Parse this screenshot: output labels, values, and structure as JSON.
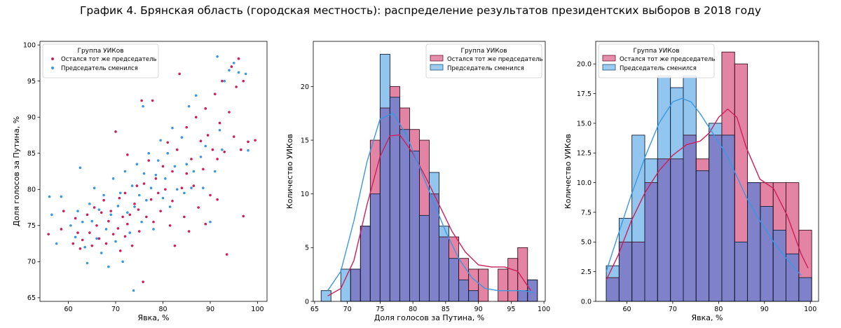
{
  "suptitle": "График 4. Брянская область (городская местность): распределение результатов президентских выборов в 2018 году",
  "colors": {
    "same": "#cc1f5a",
    "changed": "#3b98e0",
    "overlap": "#7f82c9"
  },
  "legend": {
    "title": "Группа УИКов",
    "same": "Остался тот же председатель",
    "changed": "Председатель сменился"
  },
  "chart_data": [
    {
      "type": "scatter",
      "xlabel": "Явка, %",
      "ylabel": "Доля голосов за Путина, %",
      "xlim": [
        54,
        102
      ],
      "ylim": [
        64.5,
        100.5
      ],
      "xticks": [
        60,
        70,
        80,
        90,
        100
      ],
      "yticks": [
        65,
        70,
        75,
        80,
        85,
        90,
        95,
        100
      ],
      "legend_position": "top-left",
      "note": "approximate positions of individual polling stations",
      "series": [
        {
          "name": "Остался тот же председатель",
          "points": [
            [
              55.8,
              73.8
            ],
            [
              58.5,
              74.5
            ],
            [
              59,
              77
            ],
            [
              61,
              72.5
            ],
            [
              61.5,
              76
            ],
            [
              62,
              74
            ],
            [
              62.5,
              71.8
            ],
            [
              63,
              73
            ],
            [
              64,
              76.5
            ],
            [
              64.5,
              74
            ],
            [
              65,
              72.2
            ],
            [
              65.5,
              77.5
            ],
            [
              66,
              75
            ],
            [
              66.5,
              73.2
            ],
            [
              67,
              76.8
            ],
            [
              67.5,
              78.5
            ],
            [
              68,
              72.5
            ],
            [
              68.5,
              75.6
            ],
            [
              69,
              77
            ],
            [
              69.5,
              73.8
            ],
            [
              70,
              88
            ],
            [
              70.5,
              74.6
            ],
            [
              70.8,
              78.8
            ],
            [
              71,
              71.5
            ],
            [
              71.5,
              76.2
            ],
            [
              72,
              79.5
            ],
            [
              72,
              73.5
            ],
            [
              72.5,
              84.8
            ],
            [
              72.5,
              75.2
            ],
            [
              73,
              76.5
            ],
            [
              73.5,
              72.2
            ],
            [
              74,
              78
            ],
            [
              74.5,
              80.5
            ],
            [
              74.8,
              77.2
            ],
            [
              75,
              74.2
            ],
            [
              75.5,
              92.3
            ],
            [
              75.8,
              67.2
            ],
            [
              76,
              80.8
            ],
            [
              76.5,
              76.2
            ],
            [
              77,
              84
            ],
            [
              77.5,
              78.6
            ],
            [
              77.8,
              92.3
            ],
            [
              78,
              75.5
            ],
            [
              78.5,
              81.5
            ],
            [
              79,
              79.5
            ],
            [
              79.5,
              77
            ],
            [
              80,
              83.2
            ],
            [
              80.5,
              80
            ],
            [
              81,
              86.5
            ],
            [
              81.5,
              75
            ],
            [
              82,
              82.5
            ],
            [
              82,
              78.4
            ],
            [
              82.5,
              72.2
            ],
            [
              83,
              85.5
            ],
            [
              83.5,
              96
            ],
            [
              84,
              80.2
            ],
            [
              84.5,
              76.2
            ],
            [
              85,
              88.6
            ],
            [
              85,
              82.2
            ],
            [
              85.5,
              74.2
            ],
            [
              86,
              84.2
            ],
            [
              86.5,
              80.5
            ],
            [
              87,
              90
            ],
            [
              87.5,
              77.5
            ],
            [
              88,
              86.7
            ],
            [
              88.5,
              82.8
            ],
            [
              89,
              91.2
            ],
            [
              89,
              75.2
            ],
            [
              89.5,
              87.5
            ],
            [
              90,
              79.2
            ],
            [
              90.5,
              85.5
            ],
            [
              91,
              93.2
            ],
            [
              91.5,
              84.2
            ],
            [
              91.5,
              78.6
            ],
            [
              92,
              89.2
            ],
            [
              92.5,
              95
            ],
            [
              93,
              85.2
            ],
            [
              93.5,
              71
            ],
            [
              94,
              90.7
            ],
            [
              94.5,
              97
            ],
            [
              95,
              87.3
            ],
            [
              95.5,
              94.2
            ],
            [
              96,
              98.1
            ],
            [
              96.5,
              85.5
            ],
            [
              97,
              95
            ],
            [
              97,
              76.3
            ],
            [
              98,
              86.6
            ],
            [
              99.5,
              86.8
            ]
          ]
        },
        {
          "name": "Председатель сменился",
          "points": [
            [
              56,
              79
            ],
            [
              56.5,
              76.5
            ],
            [
              57.5,
              72.5
            ],
            [
              58.5,
              79
            ],
            [
              60.5,
              75
            ],
            [
              61.5,
              73.4
            ],
            [
              62,
              77
            ],
            [
              62.5,
              83
            ],
            [
              63,
              75.5
            ],
            [
              63.5,
              72
            ],
            [
              64,
              69.8
            ],
            [
              64.5,
              78
            ],
            [
              65,
              75.6
            ],
            [
              65.5,
              80.2
            ],
            [
              66,
              73.2
            ],
            [
              66.5,
              77.2
            ],
            [
              67,
              71.2
            ],
            [
              67.5,
              79.2
            ],
            [
              68,
              74.5
            ],
            [
              68.5,
              69.3
            ],
            [
              69,
              76.5
            ],
            [
              69.5,
              81.5
            ],
            [
              70,
              72.8
            ],
            [
              70.5,
              77.7
            ],
            [
              71,
              79.5
            ],
            [
              71.5,
              70
            ],
            [
              72,
              82.5
            ],
            [
              72.5,
              76.8
            ],
            [
              73,
              74
            ],
            [
              73.5,
              80.5
            ],
            [
              73.8,
              66
            ],
            [
              74,
              77.6
            ],
            [
              74.5,
              83.5
            ],
            [
              75,
              79.2
            ],
            [
              75.5,
              75.5
            ],
            [
              75.8,
              91.5
            ],
            [
              76,
              82.2
            ],
            [
              76.5,
              78.5
            ],
            [
              77,
              85
            ],
            [
              77.5,
              80.2
            ],
            [
              78,
              74.5
            ],
            [
              78.5,
              82
            ],
            [
              79,
              84
            ],
            [
              79.5,
              86.8
            ],
            [
              80,
              78.8
            ],
            [
              80.5,
              81.5
            ],
            [
              81,
              85
            ],
            [
              81.5,
              77.6
            ],
            [
              82,
              88.5
            ],
            [
              82.5,
              83.2
            ],
            [
              83,
              80
            ],
            [
              84,
              87.2
            ],
            [
              84.5,
              79.5
            ],
            [
              85,
              83.5
            ],
            [
              85.5,
              91.5
            ],
            [
              86,
              80.2
            ],
            [
              86.5,
              82.5
            ],
            [
              87,
              93
            ],
            [
              88,
              84.5
            ],
            [
              88.5,
              80.2
            ],
            [
              89,
              86
            ],
            [
              90,
              75.5
            ],
            [
              91,
              82.5
            ],
            [
              91.5,
              98.4
            ],
            [
              92,
              88.2
            ],
            [
              92.5,
              85.5
            ],
            [
              93,
              95
            ],
            [
              94,
              96.5
            ],
            [
              95,
              97.5
            ],
            [
              96,
              96.2
            ],
            [
              97.5,
              96
            ],
            [
              98,
              85.4
            ]
          ]
        }
      ]
    },
    {
      "type": "histogram",
      "xlabel": "Доля голосов за Путина, %",
      "ylabel": "Количество УИКов",
      "xlim": [
        64.8,
        100.2
      ],
      "ylim": [
        0,
        24.2
      ],
      "xticks": [
        65,
        70,
        75,
        80,
        85,
        90,
        95,
        100
      ],
      "yticks": [
        0,
        5,
        10,
        15,
        20
      ],
      "legend_position": "top-right",
      "bin_edges": [
        66,
        67.5,
        69,
        70.5,
        72,
        73.5,
        75,
        76.5,
        78,
        79.5,
        81,
        82.5,
        84,
        85.5,
        87,
        88.5,
        90,
        91.5,
        93,
        94.5,
        96,
        97.5,
        99
      ],
      "series": [
        {
          "name": "Остался тот же председатель",
          "counts": [
            0,
            0,
            0,
            3,
            7,
            15,
            18,
            20,
            18,
            16,
            15,
            10,
            6,
            6,
            4,
            3,
            3,
            0,
            3,
            4,
            5,
            2
          ]
        },
        {
          "name": "Председатель сменился",
          "counts": [
            1,
            0,
            3,
            3,
            7,
            10,
            23,
            19,
            16,
            14,
            8,
            12,
            7,
            4,
            2,
            1,
            0,
            0,
            0,
            0,
            1,
            2
          ]
        }
      ],
      "kde": [
        {
          "name": "Остался тот же председатель",
          "x": [
            67,
            69,
            71,
            73,
            75,
            76.5,
            78,
            80,
            82,
            84,
            86,
            88,
            90,
            92,
            94,
            96,
            98
          ],
          "y": [
            0.5,
            1.2,
            3.8,
            9,
            13.5,
            15.4,
            15.5,
            13.8,
            11.5,
            9,
            6.5,
            4.6,
            3.4,
            3.2,
            3.2,
            2.8,
            1
          ]
        },
        {
          "name": "Председатель сменился",
          "x": [
            67,
            69,
            71,
            73,
            75,
            77,
            79,
            81,
            83,
            85,
            87,
            89,
            91,
            93,
            95,
            97,
            98.5
          ],
          "y": [
            1,
            2.8,
            7.5,
            13,
            17,
            17.5,
            15.5,
            12.5,
            9.5,
            6.5,
            4,
            2.2,
            1.2,
            1,
            1,
            1,
            0.8
          ]
        }
      ]
    },
    {
      "type": "histogram",
      "xlabel": "Явка, %",
      "ylabel": "Количество УИКов",
      "xlim": [
        53.2,
        101.8
      ],
      "ylim": [
        0,
        21.9
      ],
      "xticks": [
        60,
        70,
        80,
        90,
        100
      ],
      "yticks": [
        0.0,
        2.5,
        5.0,
        7.5,
        10.0,
        12.5,
        15.0,
        17.5,
        20.0
      ],
      "ytick_labels": [
        "0.0",
        "2.5",
        "5.0",
        "7.5",
        "10.0",
        "12.5",
        "15.0",
        "17.5",
        "20.0"
      ],
      "legend_position": "top-left",
      "bin_edges": [
        55.5,
        58.3,
        61.1,
        63.9,
        66.7,
        69.5,
        72.3,
        75.1,
        77.9,
        80.7,
        83.5,
        86.3,
        89.1,
        91.9,
        94.7,
        97.5,
        100.3
      ],
      "series": [
        {
          "name": "Остался тот же председатель",
          "counts": [
            2,
            5,
            5,
            10,
            12,
            12,
            14,
            12,
            14,
            21,
            20,
            10,
            10,
            10,
            10,
            6
          ]
        },
        {
          "name": "Председатель сменился",
          "counts": [
            3,
            7,
            14,
            12,
            19,
            18,
            19,
            11,
            15,
            14,
            5,
            10,
            8,
            6,
            4,
            2
          ]
        }
      ],
      "kde": [
        {
          "name": "Остался тот же председатель",
          "x": [
            55.5,
            58,
            61,
            64,
            67,
            70,
            73,
            76,
            78,
            80,
            82,
            84,
            86,
            89,
            92,
            95,
            98,
            99.5
          ],
          "y": [
            1.8,
            3.8,
            6.8,
            9.2,
            11,
            12.3,
            13.2,
            13.5,
            14.2,
            15.5,
            16.2,
            15.5,
            13,
            10.3,
            9.5,
            7.2,
            4,
            2.8
          ]
        },
        {
          "name": "Председатель сменился",
          "x": [
            55.5,
            58,
            61,
            64,
            67,
            70,
            72,
            74,
            76,
            78,
            80,
            82,
            84,
            86,
            89,
            92,
            95,
            98
          ],
          "y": [
            2.5,
            5.5,
            9,
            12.2,
            15,
            16.8,
            17.1,
            16.8,
            15.8,
            14.6,
            13.4,
            12.2,
            10.5,
            8.8,
            6.8,
            5,
            3.5,
            2.2
          ]
        }
      ]
    }
  ]
}
